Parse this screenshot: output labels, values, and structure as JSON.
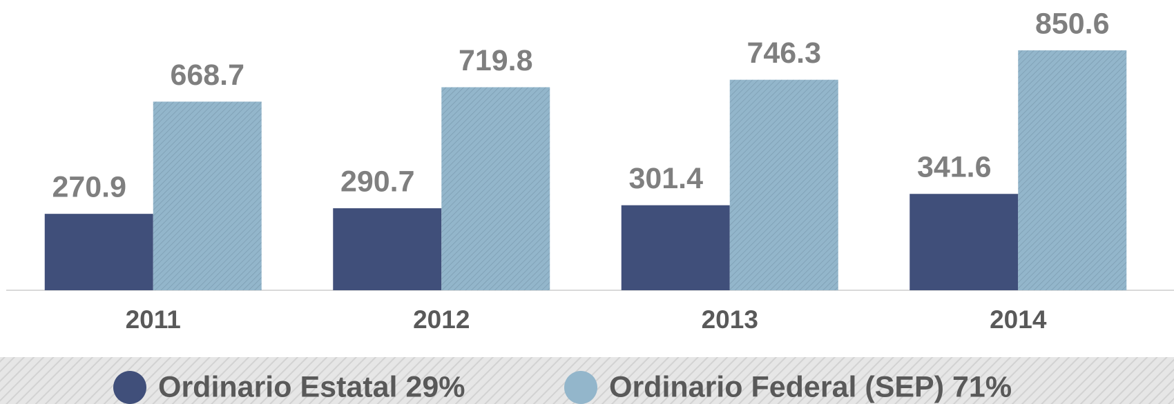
{
  "chart_data": {
    "type": "bar",
    "categories": [
      "2011",
      "2012",
      "2013",
      "2014"
    ],
    "series": [
      {
        "name": "Ordinario Estatal 29%",
        "color": "#404f7a",
        "values": [
          270.9,
          290.7,
          301.4,
          341.6
        ]
      },
      {
        "name": "Ordinario Federal (SEP) 71%",
        "color": "#93b6cb",
        "values": [
          668.7,
          719.8,
          746.3,
          850.6
        ]
      }
    ],
    "legend": "bottom"
  }
}
